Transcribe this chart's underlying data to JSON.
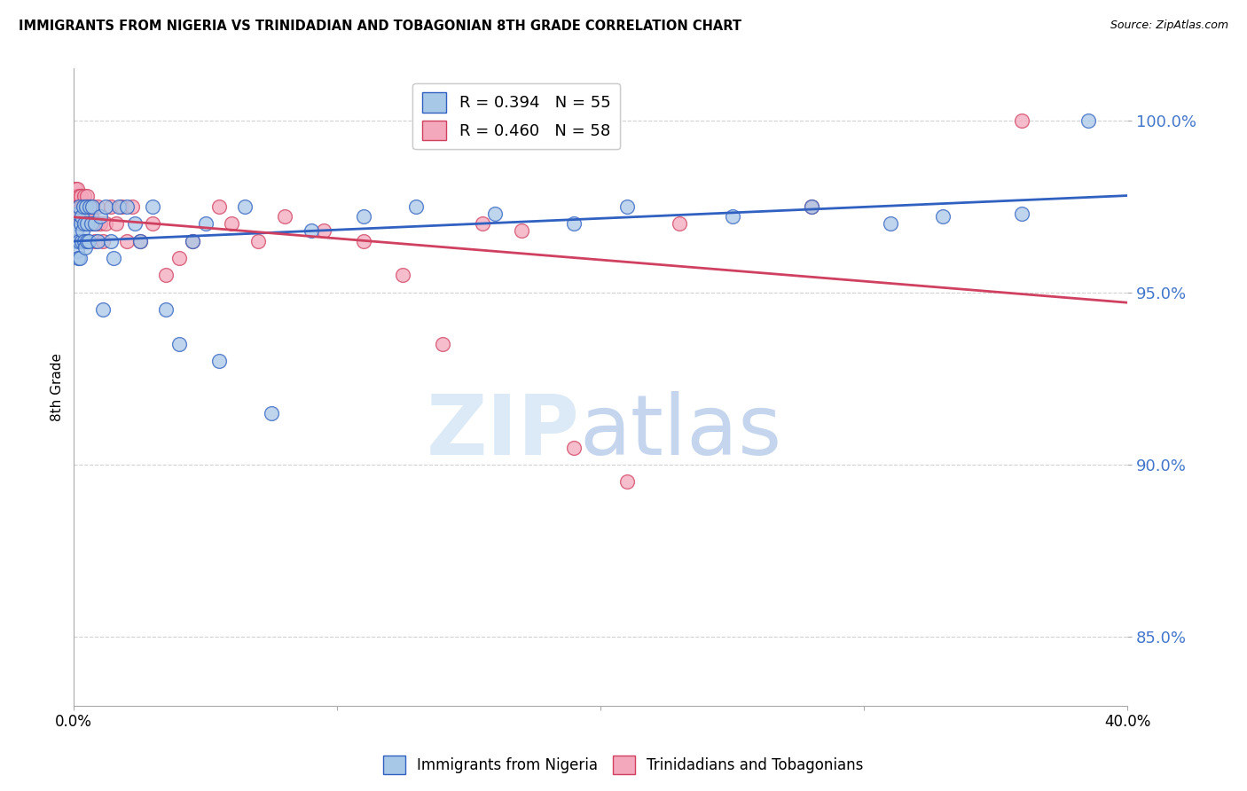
{
  "title": "IMMIGRANTS FROM NIGERIA VS TRINIDADIAN AND TOBAGONIAN 8TH GRADE CORRELATION CHART",
  "source_text": "Source: ZipAtlas.com",
  "ylabel": "8th Grade",
  "legend1_label": "R = 0.394   N = 55",
  "legend2_label": "R = 0.460   N = 58",
  "legend_bottom1": "Immigrants from Nigeria",
  "legend_bottom2": "Trinidadians and Tobagonians",
  "blue_color": "#a8c8e8",
  "pink_color": "#f4a8bc",
  "blue_line_color": "#3060c0",
  "pink_line_color": "#d04060",
  "xlim": [
    0.0,
    40.0
  ],
  "ylim": [
    83.0,
    101.5
  ],
  "yticks": [
    85.0,
    90.0,
    95.0,
    100.0
  ],
  "xticks": [
    0.0,
    10.0,
    20.0,
    30.0,
    40.0
  ],
  "xtick_labels": [
    "0.0%",
    "",
    "",
    "",
    "40.0%"
  ],
  "ytick_labels": [
    "85.0%",
    "90.0%",
    "95.0%",
    "100.0%"
  ],
  "blue_x": [
    0.05,
    0.08,
    0.1,
    0.12,
    0.15,
    0.15,
    0.18,
    0.2,
    0.22,
    0.25,
    0.28,
    0.3,
    0.32,
    0.35,
    0.38,
    0.4,
    0.42,
    0.45,
    0.48,
    0.5,
    0.55,
    0.6,
    0.65,
    0.7,
    0.8,
    0.9,
    1.0,
    1.1,
    1.2,
    1.4,
    1.5,
    1.7,
    2.0,
    2.3,
    2.5,
    3.0,
    3.5,
    4.0,
    4.5,
    5.0,
    5.5,
    6.5,
    7.5,
    9.0,
    11.0,
    13.0,
    16.0,
    19.0,
    21.0,
    25.0,
    28.0,
    31.0,
    33.0,
    36.0,
    38.5
  ],
  "blue_y": [
    96.5,
    97.0,
    96.8,
    96.2,
    97.3,
    96.0,
    97.5,
    96.5,
    96.0,
    97.0,
    96.5,
    97.2,
    96.8,
    97.5,
    96.5,
    97.0,
    96.3,
    97.5,
    96.5,
    97.0,
    96.5,
    97.5,
    97.0,
    97.5,
    97.0,
    96.5,
    97.2,
    94.5,
    97.5,
    96.5,
    96.0,
    97.5,
    97.5,
    97.0,
    96.5,
    97.5,
    94.5,
    93.5,
    96.5,
    97.0,
    93.0,
    97.5,
    91.5,
    96.8,
    97.2,
    97.5,
    97.3,
    97.0,
    97.5,
    97.2,
    97.5,
    97.0,
    97.2,
    97.3,
    100.0
  ],
  "pink_x": [
    0.05,
    0.07,
    0.1,
    0.12,
    0.14,
    0.16,
    0.18,
    0.2,
    0.22,
    0.25,
    0.27,
    0.3,
    0.33,
    0.35,
    0.38,
    0.4,
    0.42,
    0.45,
    0.48,
    0.5,
    0.53,
    0.55,
    0.58,
    0.6,
    0.65,
    0.7,
    0.75,
    0.8,
    0.85,
    0.9,
    1.0,
    1.1,
    1.2,
    1.4,
    1.6,
    1.8,
    2.0,
    2.2,
    2.5,
    3.0,
    3.5,
    4.0,
    4.5,
    5.5,
    6.0,
    7.0,
    8.0,
    9.5,
    11.0,
    12.5,
    14.0,
    15.5,
    17.0,
    19.0,
    21.0,
    23.0,
    28.0,
    36.0
  ],
  "pink_y": [
    97.5,
    98.0,
    97.8,
    97.5,
    98.0,
    97.5,
    97.8,
    97.5,
    97.0,
    97.5,
    97.8,
    97.5,
    97.0,
    97.5,
    97.8,
    97.5,
    97.2,
    97.5,
    97.8,
    97.5,
    97.2,
    97.5,
    97.0,
    97.5,
    97.2,
    97.5,
    97.0,
    96.5,
    97.0,
    97.5,
    97.0,
    96.5,
    97.0,
    97.5,
    97.0,
    97.5,
    96.5,
    97.5,
    96.5,
    97.0,
    95.5,
    96.0,
    96.5,
    97.5,
    97.0,
    96.5,
    97.2,
    96.8,
    96.5,
    95.5,
    93.5,
    97.0,
    96.8,
    90.5,
    89.5,
    97.0,
    97.5,
    100.0
  ]
}
